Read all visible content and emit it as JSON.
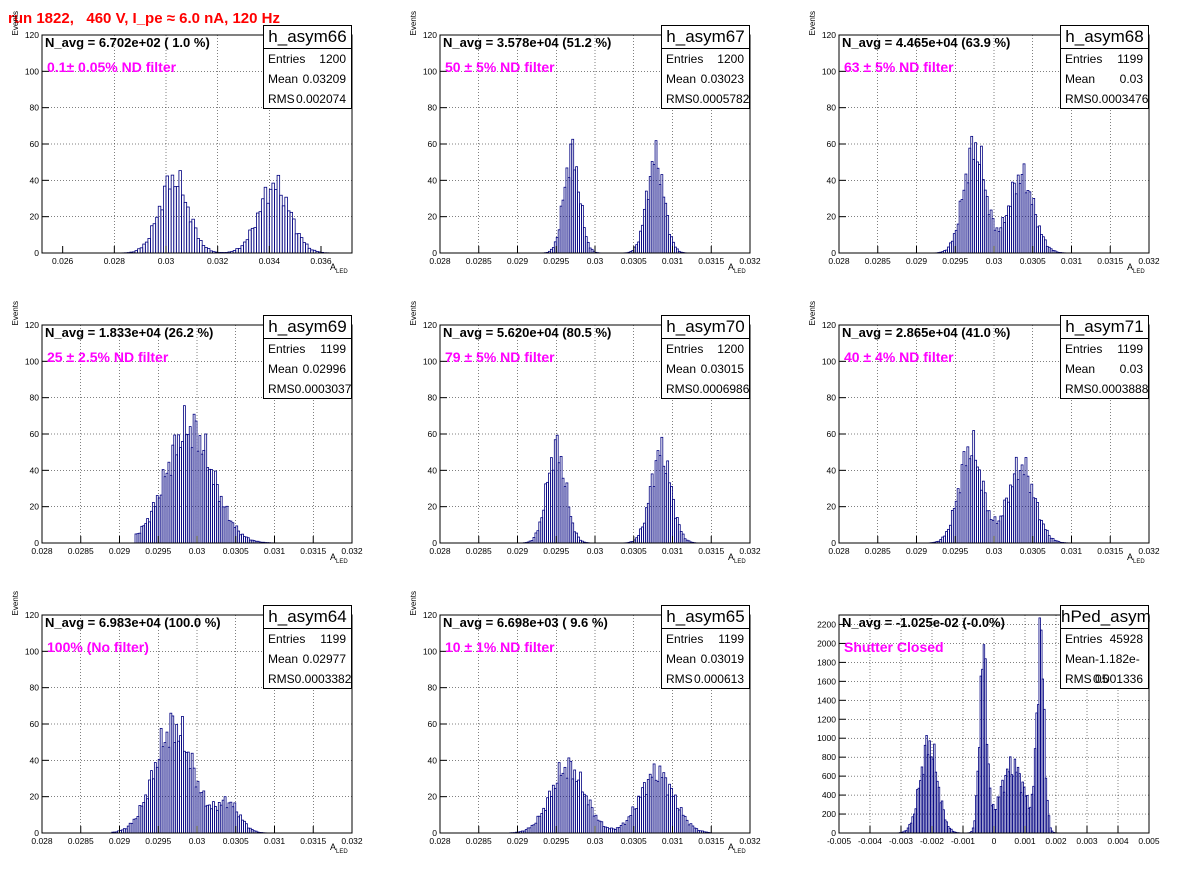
{
  "header": {
    "title": "run 1822,   460 V, I_pe ≈ 6.0 nA, 120 Hz"
  },
  "labels": {
    "entries": "Entries",
    "mean": "Mean",
    "rms": "RMS"
  },
  "colors": {
    "histogram": "#000080",
    "title": "#ff0000",
    "annotation": "#ff00ff",
    "grid": "#000000"
  },
  "chart_data": [
    {
      "type": "bar",
      "name": "h_asym66",
      "annotation": "N_avg = 6.702e+02 ( 1.0 %)",
      "filter_label": "0.1± 0.05% ND filter",
      "stats": {
        "entries": "1200",
        "mean": "0.03209",
        "rms": "0.002074"
      },
      "ylabel": "Events",
      "xlabel": "A_LED",
      "xlim": [
        0.0252,
        0.0372
      ],
      "ylim": [
        0,
        120
      ],
      "xticks": [
        0.026,
        0.028,
        0.03,
        0.032,
        0.034,
        0.036
      ],
      "xtick_labels": [
        "0.026",
        "0.028",
        "0.03",
        "0.032",
        "0.034",
        "0.036"
      ],
      "yticks": [
        0,
        20,
        40,
        60,
        80,
        100,
        120
      ],
      "ytick_labels": [
        "0",
        "20",
        "40",
        "60",
        "80",
        "100",
        "120"
      ],
      "components": [
        {
          "mu": 0.0303,
          "sigma": 0.00055,
          "height": 41
        },
        {
          "mu": 0.0342,
          "sigma": 0.0006,
          "height": 37
        }
      ],
      "range": [
        0.028,
        0.0365
      ],
      "bins": 85
    },
    {
      "type": "bar",
      "name": "h_asym67",
      "annotation": "N_avg = 3.578e+04 (51.2 %)",
      "filter_label": "50 ± 5% ND filter",
      "stats": {
        "entries": "1200",
        "mean": "0.03023",
        "rms": "0.0005782"
      },
      "ylabel": "Events",
      "xlabel": "A_LED",
      "xlim": [
        0.028,
        0.032
      ],
      "ylim": [
        0,
        120
      ],
      "xticks": [
        0.028,
        0.0285,
        0.029,
        0.0295,
        0.03,
        0.0305,
        0.031,
        0.0315,
        0.032
      ],
      "xtick_labels": [
        "0.028",
        "0.0285",
        "0.029",
        "0.0295",
        "0.03",
        "0.0305",
        "0.031",
        "0.0315",
        "0.032"
      ],
      "yticks": [
        0,
        20,
        40,
        60,
        80,
        100,
        120
      ],
      "ytick_labels": [
        "0",
        "20",
        "40",
        "60",
        "80",
        "100",
        "120"
      ],
      "components": [
        {
          "mu": 0.0297,
          "sigma": 0.0001,
          "height": 55
        },
        {
          "mu": 0.03078,
          "sigma": 0.00011,
          "height": 52
        }
      ],
      "range": [
        0.0292,
        0.0313
      ],
      "bins": 84
    },
    {
      "type": "bar",
      "name": "h_asym68",
      "annotation": "N_avg = 4.465e+04 (63.9 %)",
      "filter_label": "63 ± 5% ND filter",
      "stats": {
        "entries": "1199",
        "mean": "0.03",
        "rms": "0.0003476"
      },
      "ylabel": "Events",
      "xlabel": "A_LED",
      "xlim": [
        0.028,
        0.032
      ],
      "ylim": [
        0,
        120
      ],
      "xticks": [
        0.028,
        0.0285,
        0.029,
        0.0295,
        0.03,
        0.0305,
        0.031,
        0.0315,
        0.032
      ],
      "xtick_labels": [
        "0.028",
        "0.0285",
        "0.029",
        "0.0295",
        "0.03",
        "0.0305",
        "0.031",
        "0.0315",
        "0.032"
      ],
      "yticks": [
        0,
        20,
        40,
        60,
        80,
        100,
        120
      ],
      "ytick_labels": [
        "0",
        "20",
        "40",
        "60",
        "80",
        "100",
        "120"
      ],
      "components": [
        {
          "mu": 0.02975,
          "sigma": 0.00014,
          "height": 58
        },
        {
          "mu": 0.03035,
          "sigma": 0.00016,
          "height": 42
        }
      ],
      "range": [
        0.0292,
        0.031
      ],
      "bins": 72
    },
    {
      "type": "bar",
      "name": "h_asym69",
      "annotation": "N_avg = 1.833e+04 (26.2 %)",
      "filter_label": "25 ± 2.5% ND filter",
      "stats": {
        "entries": "1199",
        "mean": "0.02996",
        "rms": "0.0003037"
      },
      "ylabel": "Events",
      "xlabel": "A_LED",
      "xlim": [
        0.028,
        0.032
      ],
      "ylim": [
        0,
        120
      ],
      "xticks": [
        0.028,
        0.0285,
        0.029,
        0.0295,
        0.03,
        0.0305,
        0.031,
        0.0315,
        0.032
      ],
      "xtick_labels": [
        "0.028",
        "0.0285",
        "0.029",
        "0.0295",
        "0.03",
        "0.0305",
        "0.031",
        "0.0315",
        "0.032"
      ],
      "yticks": [
        0,
        20,
        40,
        60,
        80,
        100,
        120
      ],
      "ytick_labels": [
        "0",
        "20",
        "40",
        "60",
        "80",
        "100",
        "120"
      ],
      "components": [
        {
          "mu": 0.0299,
          "sigma": 0.0003,
          "height": 63
        }
      ],
      "range": [
        0.0292,
        0.0312
      ],
      "bins": 80
    },
    {
      "type": "bar",
      "name": "h_asym70",
      "annotation": "N_avg = 5.620e+04 (80.5 %)",
      "filter_label": "79 ± 5% ND filter",
      "stats": {
        "entries": "1200",
        "mean": "0.03015",
        "rms": "0.0006986"
      },
      "ylabel": "Events",
      "xlabel": "A_LED",
      "xlim": [
        0.028,
        0.032
      ],
      "ylim": [
        0,
        120
      ],
      "xticks": [
        0.028,
        0.0285,
        0.029,
        0.0295,
        0.03,
        0.0305,
        0.031,
        0.0315,
        0.032
      ],
      "xtick_labels": [
        "0.028",
        "0.0285",
        "0.029",
        "0.0295",
        "0.03",
        "0.0305",
        "0.031",
        "0.0315",
        "0.032"
      ],
      "yticks": [
        0,
        20,
        40,
        60,
        80,
        100,
        120
      ],
      "ytick_labels": [
        "0",
        "20",
        "40",
        "60",
        "80",
        "100",
        "120"
      ],
      "components": [
        {
          "mu": 0.0295,
          "sigma": 0.00012,
          "height": 52
        },
        {
          "mu": 0.03085,
          "sigma": 0.00013,
          "height": 50
        }
      ],
      "range": [
        0.029,
        0.0314
      ],
      "bins": 96
    },
    {
      "type": "bar",
      "name": "h_asym71",
      "annotation": "N_avg = 2.865e+04 (41.0 %)",
      "filter_label": "40 ± 4% ND filter",
      "stats": {
        "entries": "1199",
        "mean": "0.03",
        "rms": "0.0003888"
      },
      "ylabel": "Events",
      "xlabel": "A_LED",
      "xlim": [
        0.028,
        0.032
      ],
      "ylim": [
        0,
        120
      ],
      "xticks": [
        0.028,
        0.0285,
        0.029,
        0.0295,
        0.03,
        0.0305,
        0.031,
        0.0315,
        0.032
      ],
      "xtick_labels": [
        "0.028",
        "0.0285",
        "0.029",
        "0.0295",
        "0.03",
        "0.0305",
        "0.031",
        "0.0315",
        "0.032"
      ],
      "yticks": [
        0,
        20,
        40,
        60,
        80,
        100,
        120
      ],
      "ytick_labels": [
        "0",
        "20",
        "40",
        "60",
        "80",
        "100",
        "120"
      ],
      "components": [
        {
          "mu": 0.0297,
          "sigma": 0.00015,
          "height": 52
        },
        {
          "mu": 0.03035,
          "sigma": 0.00017,
          "height": 42
        }
      ],
      "range": [
        0.0291,
        0.0312
      ],
      "bins": 84
    },
    {
      "type": "bar",
      "name": "h_asym64",
      "annotation": "N_avg = 6.983e+04 (100.0 %)",
      "filter_label": "100% (No filter)",
      "stats": {
        "entries": "1199",
        "mean": "0.02977",
        "rms": "0.0003382"
      },
      "ylabel": "Events",
      "xlabel": "A_LED",
      "xlim": [
        0.028,
        0.032
      ],
      "ylim": [
        0,
        120
      ],
      "xticks": [
        0.028,
        0.0285,
        0.029,
        0.0295,
        0.03,
        0.0305,
        0.031,
        0.0315,
        0.032
      ],
      "xtick_labels": [
        "0.028",
        "0.0285",
        "0.029",
        "0.0295",
        "0.03",
        "0.0305",
        "0.031",
        "0.0315",
        "0.032"
      ],
      "yticks": [
        0,
        20,
        40,
        60,
        80,
        100,
        120
      ],
      "ytick_labels": [
        "0",
        "20",
        "40",
        "60",
        "80",
        "100",
        "120"
      ],
      "components": [
        {
          "mu": 0.0297,
          "sigma": 0.00025,
          "height": 58
        },
        {
          "mu": 0.0304,
          "sigma": 0.00015,
          "height": 16
        }
      ],
      "range": [
        0.0289,
        0.0311
      ],
      "bins": 88
    },
    {
      "type": "bar",
      "name": "h_asym65",
      "annotation": "N_avg = 6.698e+03 ( 9.6 %)",
      "filter_label": "10 ± 1% ND filter",
      "stats": {
        "entries": "1199",
        "mean": "0.03019",
        "rms": "0.000613"
      },
      "ylabel": "Events",
      "xlabel": "A_LED",
      "xlim": [
        0.028,
        0.032
      ],
      "ylim": [
        0,
        120
      ],
      "xticks": [
        0.028,
        0.0285,
        0.029,
        0.0295,
        0.03,
        0.0305,
        0.031,
        0.0315,
        0.032
      ],
      "xtick_labels": [
        "0.028",
        "0.0285",
        "0.029",
        "0.0295",
        "0.03",
        "0.0305",
        "0.031",
        "0.0315",
        "0.032"
      ],
      "yticks": [
        0,
        20,
        40,
        60,
        80,
        100,
        120
      ],
      "ytick_labels": [
        "0",
        "20",
        "40",
        "60",
        "80",
        "100",
        "120"
      ],
      "components": [
        {
          "mu": 0.02965,
          "sigma": 0.00022,
          "height": 36
        },
        {
          "mu": 0.0308,
          "sigma": 0.00022,
          "height": 33
        }
      ],
      "range": [
        0.0289,
        0.0315
      ],
      "bins": 104
    },
    {
      "type": "bar",
      "name": "hPed_asym",
      "annotation": "N_avg = -1.025e-02 (-0.0%)",
      "filter_label": "Shutter Closed",
      "stats": {
        "entries": "45928",
        "mean": "-1.182e-05",
        "rms": "0.001336"
      },
      "ylabel": "",
      "xlabel": "",
      "xlim": [
        -0.005,
        0.005
      ],
      "ylim": [
        0,
        2300
      ],
      "xticks": [
        -0.005,
        -0.004,
        -0.003,
        -0.002,
        -0.001,
        0,
        0.001,
        0.002,
        0.003,
        0.004,
        0.005
      ],
      "xtick_labels": [
        "-0.005",
        "-0.004",
        "-0.003",
        "-0.002",
        "-0.001",
        "0",
        "0.001",
        "0.002",
        "0.003",
        "0.004",
        "0.005"
      ],
      "yticks": [
        0,
        200,
        400,
        600,
        800,
        1000,
        1200,
        1400,
        1600,
        1800,
        2000,
        2200
      ],
      "ytick_labels": [
        "0",
        "200",
        "400",
        "600",
        "800",
        "1000",
        "1200",
        "1400",
        "1600",
        "1800",
        "2000",
        "2200"
      ],
      "components": [
        {
          "mu": -0.0021,
          "sigma": 0.00028,
          "height": 930
        },
        {
          "mu": -0.00035,
          "sigma": 0.00012,
          "height": 1850
        },
        {
          "mu": 0.0015,
          "sigma": 0.00012,
          "height": 2000
        },
        {
          "mu": 0.0006,
          "sigma": 0.0004,
          "height": 700
        }
      ],
      "range": [
        -0.0032,
        0.0024
      ],
      "bins": 112
    }
  ]
}
